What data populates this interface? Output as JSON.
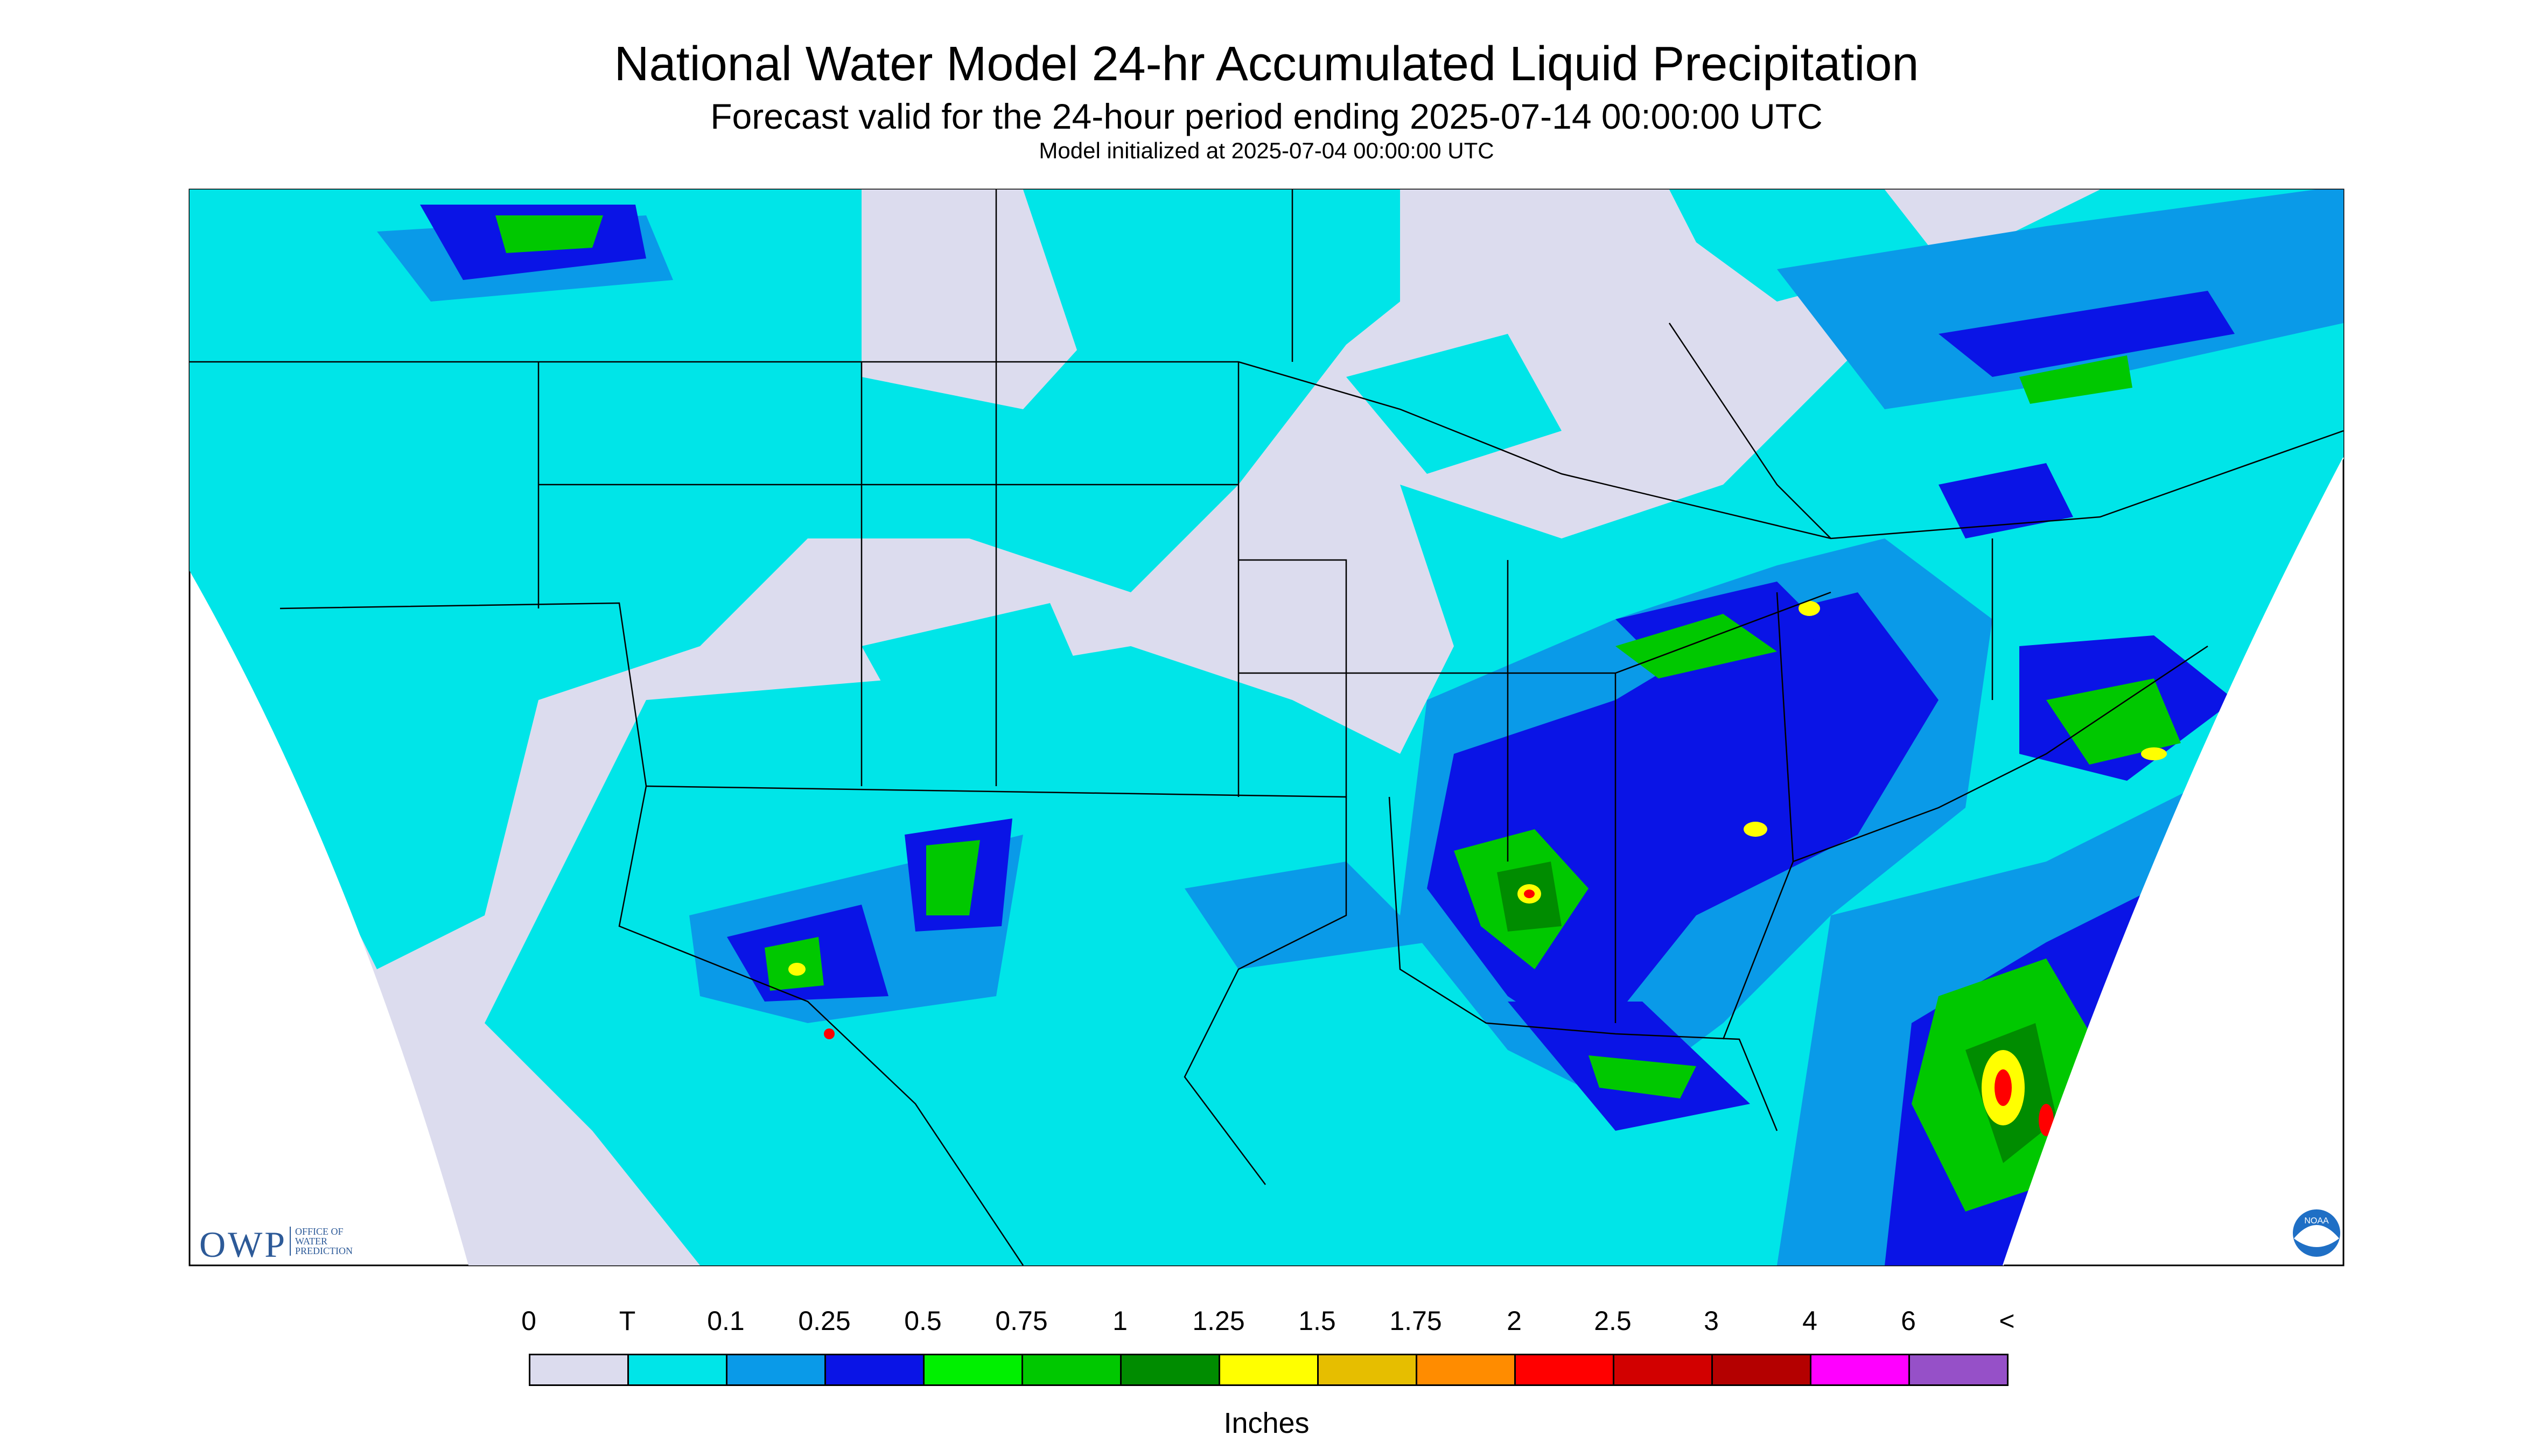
{
  "header": {
    "title": "National Water Model 24-hr Accumulated Liquid Precipitation",
    "subtitle": "Forecast valid for the 24-hour period ending 2025-07-14 00:00:00 UTC",
    "init": "Model initialized at 2025-07-04 00:00:00 UTC"
  },
  "legend": {
    "labels": [
      "0",
      "T",
      "0.1",
      "0.25",
      "0.5",
      "0.75",
      "1",
      "1.25",
      "1.5",
      "1.75",
      "2",
      "2.5",
      "3",
      "4",
      "6",
      "<"
    ],
    "colors": [
      "#dcdcee",
      "#00e5e8",
      "#0a9ae8",
      "#0a14e6",
      "#00f000",
      "#00c800",
      "#008c00",
      "#ffff00",
      "#e6be00",
      "#ff8c00",
      "#ff0000",
      "#d20000",
      "#b40000",
      "#ff00ff",
      "#9650c8"
    ],
    "units": "Inches"
  },
  "logos": {
    "owp_initials": "OWP",
    "owp_text": [
      "OFFICE OF",
      "WATER",
      "PREDICTION"
    ],
    "noaa_text": "NOAA"
  },
  "palette": {
    "none": "#dcdcee",
    "trace": "#00e5e8",
    "light": "#0a9ae8",
    "moderate": "#0a14e6",
    "green": "#00f000",
    "mid_green": "#00c800",
    "dark_green": "#008c00",
    "yellow": "#ffff00",
    "red": "#ff0000",
    "border": "#000000"
  }
}
